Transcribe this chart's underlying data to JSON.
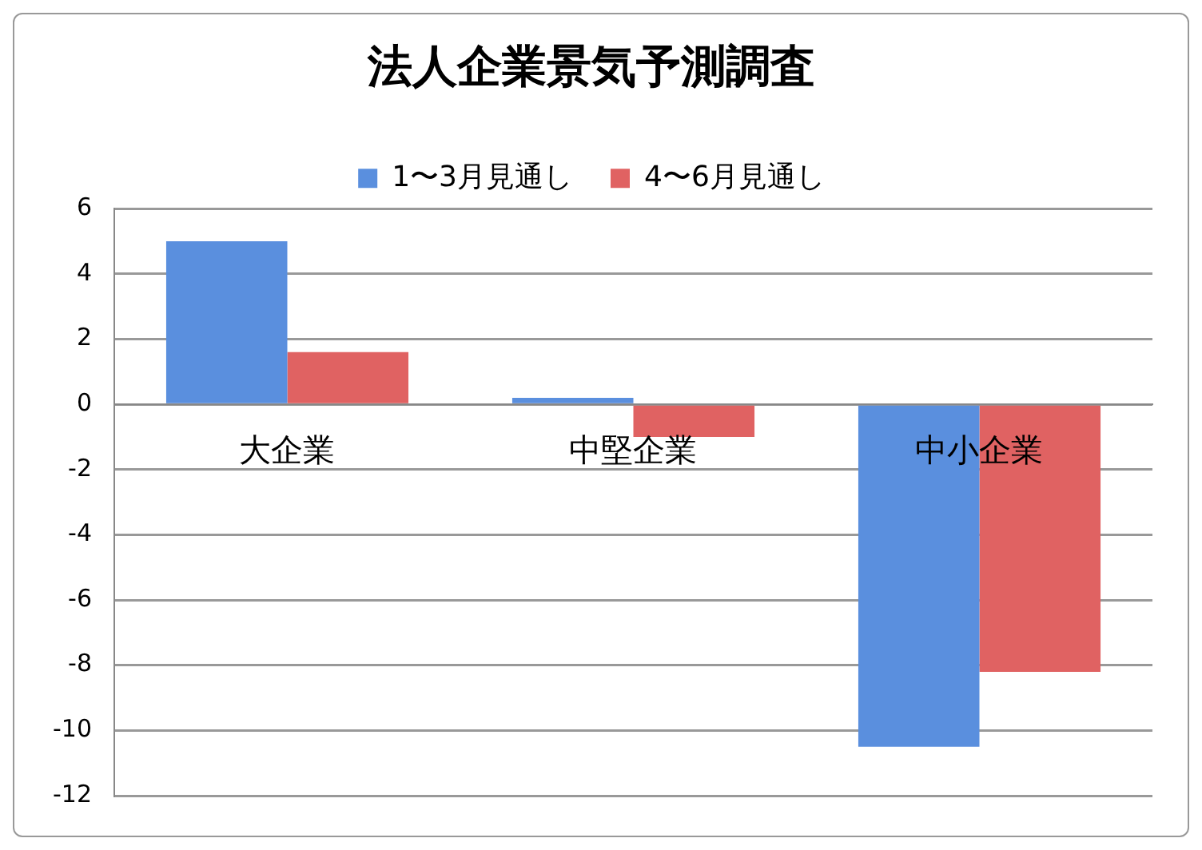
{
  "chart_data": {
    "type": "bar",
    "title": "法人企業景気予測調査",
    "categories": [
      "大企業",
      "中堅企業",
      "中小企業"
    ],
    "series": [
      {
        "name": "1〜3月見通し",
        "color": "#5a8fde",
        "values": [
          5,
          0.2,
          -10.5
        ]
      },
      {
        "name": "4〜6月見通し",
        "color": "#e06262",
        "values": [
          1.6,
          -1.0,
          -8.2
        ]
      }
    ],
    "ylim": [
      -12,
      6
    ],
    "yticks": [
      -12,
      -10,
      -8,
      -6,
      -4,
      -2,
      0,
      2,
      4,
      6
    ],
    "grid": "y",
    "legend": "top"
  }
}
